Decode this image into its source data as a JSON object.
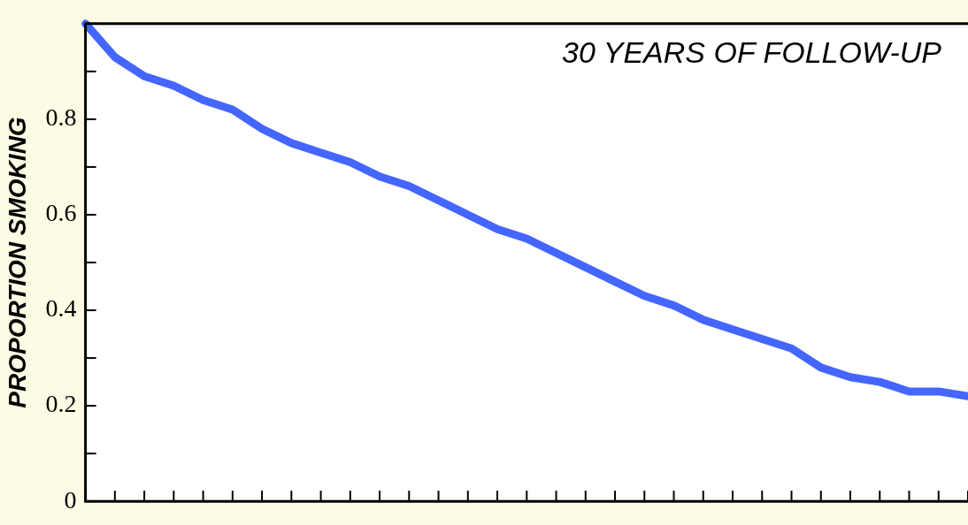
{
  "chart_data": {
    "type": "line",
    "ylabel": "PROPORTION SMOKING",
    "annotations": [
      "30 YEARS OF FOLLOW-UP"
    ],
    "categories": [
      null,
      null,
      null,
      null,
      null,
      null,
      null,
      null,
      null,
      null,
      null,
      null,
      null,
      null,
      null,
      null,
      null,
      null,
      null,
      null,
      null,
      null,
      null,
      null,
      null,
      null,
      null,
      null,
      null,
      null,
      null
    ],
    "series": [
      {
        "color": "#4466ff",
        "values": [
          1.0,
          0.93,
          0.89,
          0.87,
          0.84,
          0.82,
          0.78,
          0.75,
          0.73,
          0.71,
          0.68,
          0.66,
          0.63,
          0.6,
          0.57,
          0.55,
          0.52,
          0.49,
          0.46,
          0.43,
          0.41,
          0.38,
          0.36,
          0.34,
          0.32,
          0.28,
          0.26,
          0.25,
          0.23,
          0.23,
          0.22
        ]
      }
    ],
    "ylim": [
      0,
      1
    ],
    "yticks": [
      0,
      {
        "value": 0.1,
        "label": null
      },
      0.2,
      {
        "value": 0.3,
        "label": null
      },
      0.4,
      {
        "value": 0.5,
        "label": null
      },
      0.6,
      {
        "value": 0.7,
        "label": null
      },
      0.8,
      {
        "value": 0.9,
        "label": null
      },
      {
        "value": 1,
        "label": null
      }
    ],
    "tick_labels": "y",
    "grid": false,
    "legend": false,
    "marker": "none",
    "line_style": "solid"
  }
}
